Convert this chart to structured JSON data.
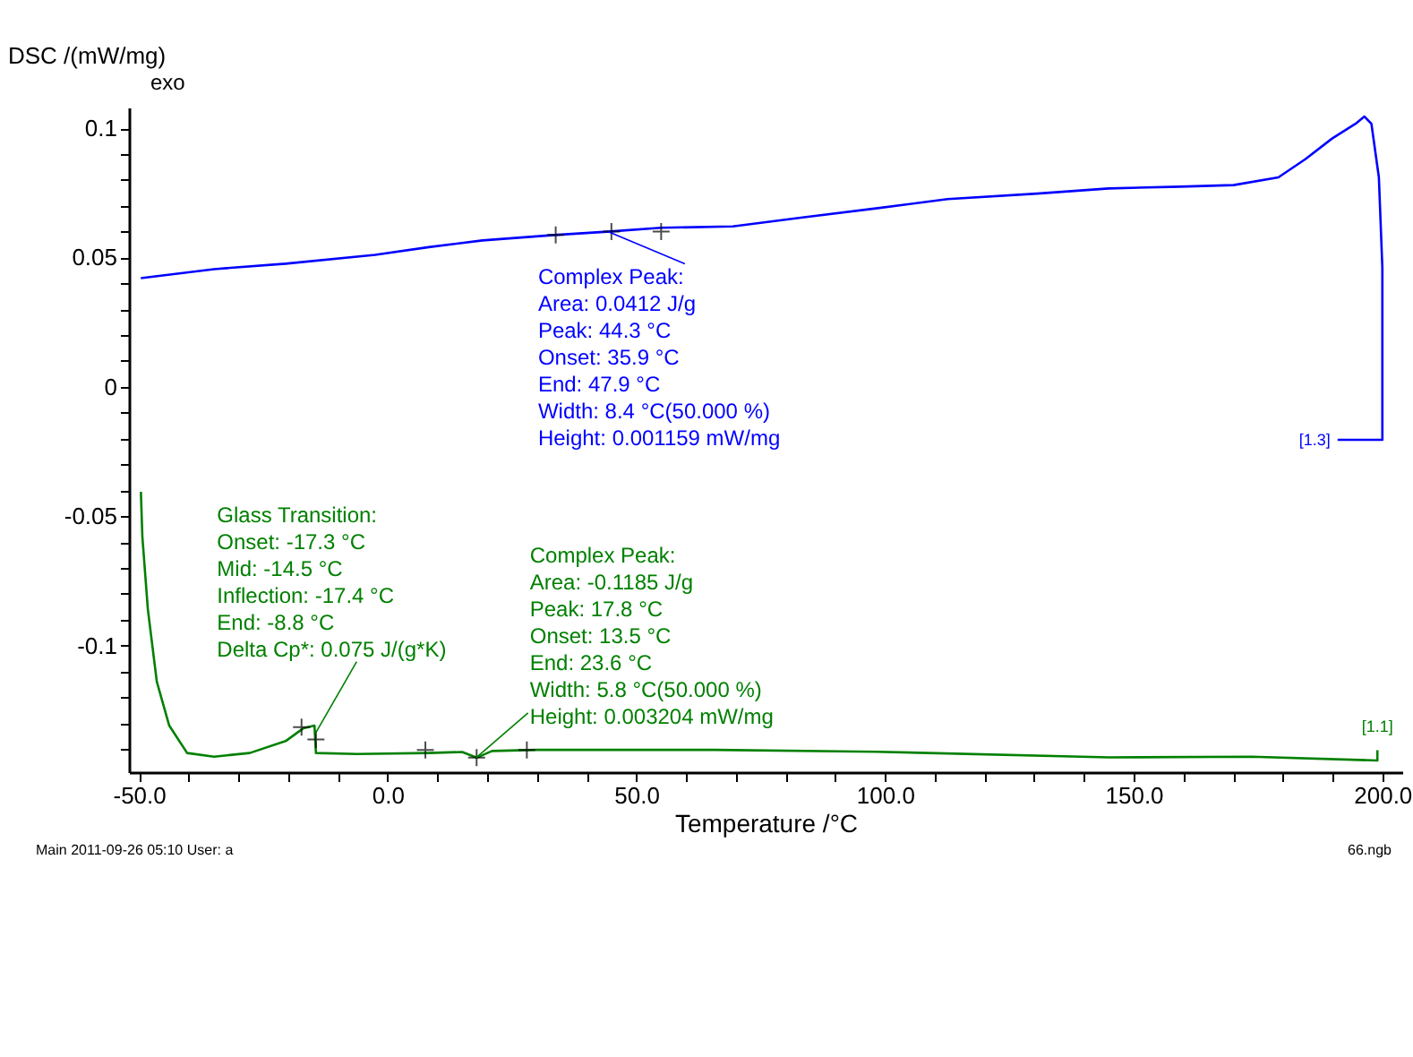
{
  "chart_data": {
    "type": "line",
    "xlabel": "Temperature /°C",
    "ylabel": "DSC /(mW/mg)",
    "xlim": [
      -52,
      204
    ],
    "ylim": [
      -0.149,
      0.108
    ],
    "xticks": [
      {
        "value": -50,
        "label": "-50.0"
      },
      {
        "value": -40,
        "label": null
      },
      {
        "value": -30,
        "label": null
      },
      {
        "value": -20,
        "label": null
      },
      {
        "value": -10,
        "label": null
      },
      {
        "value": 0,
        "label": "0.0"
      },
      {
        "value": 10,
        "label": null
      },
      {
        "value": 20,
        "label": null
      },
      {
        "value": 30,
        "label": null
      },
      {
        "value": 40,
        "label": null
      },
      {
        "value": 50,
        "label": "50.0"
      },
      {
        "value": 60,
        "label": null
      },
      {
        "value": 70,
        "label": null
      },
      {
        "value": 80,
        "label": null
      },
      {
        "value": 90,
        "label": null
      },
      {
        "value": 100,
        "label": "100.0"
      },
      {
        "value": 110,
        "label": null
      },
      {
        "value": 120,
        "label": null
      },
      {
        "value": 130,
        "label": null
      },
      {
        "value": 140,
        "label": null
      },
      {
        "value": 150,
        "label": "150.0"
      },
      {
        "value": 160,
        "label": null
      },
      {
        "value": 170,
        "label": null
      },
      {
        "value": 180,
        "label": null
      },
      {
        "value": 190,
        "label": null
      },
      {
        "value": 200,
        "label": "200.0"
      }
    ],
    "yticks": [
      0.1,
      {
        "value": 0.09,
        "label": null
      },
      {
        "value": 0.08,
        "label": null
      },
      {
        "value": 0.07,
        "label": null
      },
      {
        "value": 0.06,
        "label": null
      },
      0.05,
      {
        "value": 0.04,
        "label": null
      },
      {
        "value": 0.03,
        "label": null
      },
      {
        "value": 0.02,
        "label": null
      },
      {
        "value": 0.01,
        "label": null
      },
      0,
      {
        "value": -0.01,
        "label": null
      },
      {
        "value": -0.02,
        "label": null
      },
      {
        "value": -0.03,
        "label": null
      },
      {
        "value": -0.04,
        "label": null
      },
      -0.05,
      {
        "value": -0.06,
        "label": null
      },
      {
        "value": -0.07,
        "label": null
      },
      {
        "value": -0.08,
        "label": null
      },
      {
        "value": -0.09,
        "label": null
      },
      -0.1,
      {
        "value": -0.11,
        "label": null
      },
      {
        "value": -0.12,
        "label": null
      },
      {
        "value": -0.13,
        "label": null
      },
      {
        "value": -0.14,
        "label": null
      }
    ],
    "grid": false,
    "legend": false,
    "line_style": "solid",
    "series": [
      {
        "name": "[1.3]",
        "color": "#0000ff",
        "x": [
          -49.6,
          -34.9,
          -20.5,
          -2.5,
          8.3,
          19.1,
          33.5,
          44.2,
          55,
          69.4,
          83.8,
          98.2,
          112.6,
          130.6,
          145,
          159.4,
          170.1,
          179.1,
          184.5,
          189.9,
          194.6,
          196.4,
          197.8,
          199.3,
          200,
          200,
          191
        ],
        "values": [
          0.042,
          0.0455,
          0.0476,
          0.051,
          0.054,
          0.0566,
          0.0587,
          0.06,
          0.0615,
          0.062,
          0.0656,
          0.069,
          0.0726,
          0.0747,
          0.0767,
          0.0774,
          0.078,
          0.081,
          0.088,
          0.096,
          0.1017,
          0.1045,
          0.1017,
          0.081,
          0.046,
          -0.0205,
          -0.0205
        ]
      },
      {
        "name": "[1.1]",
        "color": "#008000",
        "x": [
          -49.6,
          -49.3,
          -48.2,
          -46.4,
          -43.9,
          -40.3,
          -34.9,
          -27.7,
          -20.5,
          -16.9,
          -14.7,
          -14.4,
          -6.1,
          8.3,
          15,
          17.9,
          21,
          29.9,
          65.8,
          98.2,
          145,
          173.7,
          199,
          199
        ],
        "values": [
          -0.0406,
          -0.058,
          -0.086,
          -0.114,
          -0.131,
          -0.1416,
          -0.143,
          -0.1416,
          -0.137,
          -0.132,
          -0.131,
          -0.1416,
          -0.142,
          -0.1416,
          -0.1412,
          -0.1434,
          -0.1408,
          -0.1404,
          -0.1404,
          -0.1411,
          -0.1433,
          -0.143,
          -0.1445,
          -0.1405
        ]
      },
      {
        "type": "scatter",
        "marker": "cross",
        "color": "#000000",
        "x": [
          33.8,
          45,
          55
        ],
        "values": [
          0.0587,
          0.06,
          0.06
        ]
      },
      {
        "type": "scatter",
        "marker": "cross",
        "color": "#000000",
        "x": [
          -17.3,
          -14.4,
          7.6,
          17.9,
          28
        ],
        "values": [
          -0.1316,
          -0.1364,
          -0.1404,
          -0.1434,
          -0.1404
        ]
      }
    ],
    "annotations": [
      {
        "text": "Complex Peak:\nArea:    0.0412 J/g\nPeak:   44.3 °C\nOnset:  35.9 °C\nEnd:    47.9 °C\nWidth:   8.4 °C(50.000 %)\nHeight:  0.001159 mW/mg",
        "x": 44.3,
        "y": 0.06
      },
      {
        "text": "Glass Transition:\nOnset:        -17.3 °C\nMid:          -14.5 °C\nInflection:  -17.4 °C\nEnd:           -8.8 °C\nDelta Cp*:     0.075 J/(g*K)",
        "x": -14.5,
        "y": -0.134
      },
      {
        "text": "Complex Peak:\nArea:   -0.1185 J/g\nPeak:   17.8 °C\nOnset:  13.5 °C\nEnd:    23.6 °C\nWidth:   5.8 °C(50.000 %)\nHeight:  0.003204 mW/mg",
        "x": 17.8,
        "y": -0.1434
      },
      "exo",
      "Main   2011-09-26 05:10   User: a",
      "66.ngb"
    ]
  }
}
